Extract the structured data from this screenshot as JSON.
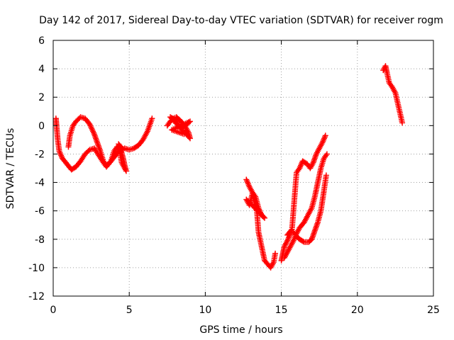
{
  "chart_data": {
    "type": "scatter",
    "title": "Day 142 of 2017, Sidereal Day-to-day VTEC variation (SDTVAR) for receiver rogm",
    "xlabel": "GPS time / hours",
    "ylabel": "SDTVAR / TECUs",
    "xlim": [
      0,
      25
    ],
    "ylim": [
      -12,
      6
    ],
    "xticks": [
      "0",
      "5",
      "10",
      "15",
      "20",
      "25"
    ],
    "yticks": [
      "-12",
      "-10",
      "-8",
      "-6",
      "-4",
      "-2",
      "0",
      "2",
      "4",
      "6"
    ],
    "grid": true,
    "marker": "plus",
    "color": "#ff0000",
    "series": [
      {
        "segments": [
          [
            [
              0.18,
              0.5
            ],
            [
              0.22,
              0.0
            ],
            [
              0.3,
              -1.0
            ],
            [
              0.4,
              -1.8
            ],
            [
              0.6,
              -2.3
            ],
            [
              0.9,
              -2.7
            ],
            [
              1.2,
              -3.1
            ],
            [
              1.5,
              -2.9
            ],
            [
              1.8,
              -2.5
            ],
            [
              2.1,
              -2.0
            ],
            [
              2.4,
              -1.7
            ],
            [
              2.7,
              -1.6
            ],
            [
              3.0,
              -2.1
            ],
            [
              3.3,
              -2.6
            ],
            [
              3.5,
              -2.9
            ],
            [
              3.8,
              -2.5
            ],
            [
              4.1,
              -2.1
            ],
            [
              4.4,
              -1.7
            ],
            [
              4.7,
              -1.6
            ],
            [
              5.0,
              -1.7
            ],
            [
              5.3,
              -1.6
            ],
            [
              5.6,
              -1.4
            ],
            [
              5.9,
              -1.0
            ],
            [
              6.2,
              -0.4
            ],
            [
              6.5,
              0.5
            ]
          ],
          [
            [
              1.0,
              -1.5
            ],
            [
              1.1,
              -0.7
            ],
            [
              1.3,
              0.0
            ],
            [
              1.5,
              0.3
            ],
            [
              1.8,
              0.6
            ],
            [
              2.1,
              0.5
            ],
            [
              2.4,
              0.1
            ],
            [
              2.7,
              -0.6
            ],
            [
              2.9,
              -1.2
            ],
            [
              3.1,
              -1.8
            ],
            [
              3.3,
              -2.5
            ],
            [
              3.5,
              -2.8
            ],
            [
              3.8,
              -2.5
            ],
            [
              4.0,
              -1.8
            ],
            [
              4.2,
              -1.5
            ],
            [
              4.4,
              -1.5
            ],
            [
              4.5,
              -1.9
            ],
            [
              4.6,
              -2.3
            ],
            [
              4.7,
              -2.8
            ],
            [
              4.8,
              -3.2
            ],
            [
              4.5,
              -2.6
            ],
            [
              4.3,
              -1.3
            ],
            [
              4.6,
              -1.7
            ]
          ],
          [
            [
              7.5,
              0.0
            ],
            [
              7.7,
              0.3
            ],
            [
              7.9,
              0.5
            ],
            [
              8.1,
              0.6
            ],
            [
              8.3,
              0.4
            ],
            [
              8.5,
              0.2
            ],
            [
              8.7,
              -0.1
            ],
            [
              8.9,
              -0.5
            ],
            [
              9.0,
              -0.9
            ],
            [
              7.7,
              0.6
            ],
            [
              8.0,
              0.4
            ],
            [
              8.2,
              0.1
            ],
            [
              8.4,
              -0.2
            ],
            [
              8.6,
              0.0
            ],
            [
              8.8,
              0.1
            ],
            [
              9.0,
              0.3
            ],
            [
              7.8,
              -0.3
            ],
            [
              8.6,
              -0.6
            ]
          ],
          [
            [
              12.7,
              -3.8
            ],
            [
              12.9,
              -4.3
            ],
            [
              13.1,
              -4.7
            ],
            [
              13.3,
              -5.0
            ],
            [
              13.5,
              -5.8
            ],
            [
              13.7,
              -6.3
            ],
            [
              13.9,
              -6.5
            ],
            [
              12.7,
              -5.2
            ],
            [
              12.9,
              -5.6
            ],
            [
              13.1,
              -4.8
            ],
            [
              13.4,
              -6.1
            ],
            [
              13.5,
              -7.5
            ],
            [
              13.7,
              -8.5
            ],
            [
              13.9,
              -9.5
            ],
            [
              14.3,
              -10.0
            ],
            [
              14.5,
              -9.6
            ],
            [
              14.6,
              -9.0
            ]
          ],
          [
            [
              15.0,
              -9.5
            ],
            [
              15.1,
              -9.0
            ],
            [
              15.2,
              -8.5
            ],
            [
              15.4,
              -8.1
            ],
            [
              15.6,
              -7.6
            ],
            [
              15.8,
              -7.5
            ],
            [
              16.0,
              -7.8
            ],
            [
              16.2,
              -8.0
            ],
            [
              16.5,
              -8.2
            ],
            [
              16.8,
              -8.2
            ],
            [
              17.0,
              -8.0
            ],
            [
              17.2,
              -7.4
            ],
            [
              17.4,
              -6.8
            ],
            [
              17.6,
              -6.0
            ],
            [
              17.8,
              -4.6
            ],
            [
              17.95,
              -3.5
            ]
          ],
          [
            [
              15.2,
              -9.3
            ],
            [
              15.4,
              -8.9
            ],
            [
              15.6,
              -8.5
            ],
            [
              15.8,
              -8.1
            ],
            [
              16.0,
              -7.6
            ],
            [
              16.2,
              -7.2
            ],
            [
              16.5,
              -6.8
            ],
            [
              16.8,
              -6.2
            ],
            [
              17.0,
              -5.8
            ],
            [
              17.2,
              -5.0
            ],
            [
              17.4,
              -4.0
            ],
            [
              17.6,
              -3.0
            ],
            [
              17.8,
              -2.3
            ],
            [
              18.0,
              -2.0
            ]
          ],
          [
            [
              15.4,
              -7.7
            ],
            [
              15.7,
              -7.3
            ],
            [
              16.0,
              -3.3
            ],
            [
              16.2,
              -3.0
            ],
            [
              16.4,
              -2.5
            ],
            [
              16.7,
              -2.7
            ],
            [
              16.9,
              -3.0
            ],
            [
              17.1,
              -2.6
            ],
            [
              17.3,
              -2.0
            ],
            [
              17.5,
              -1.6
            ],
            [
              17.7,
              -1.2
            ],
            [
              17.9,
              -0.7
            ]
          ],
          [
            [
              21.7,
              3.9
            ],
            [
              21.85,
              4.2
            ],
            [
              21.95,
              3.7
            ],
            [
              22.1,
              3.0
            ],
            [
              22.3,
              2.7
            ],
            [
              22.5,
              2.3
            ],
            [
              22.65,
              1.6
            ],
            [
              22.8,
              0.9
            ],
            [
              22.95,
              0.2
            ]
          ]
        ]
      }
    ]
  }
}
